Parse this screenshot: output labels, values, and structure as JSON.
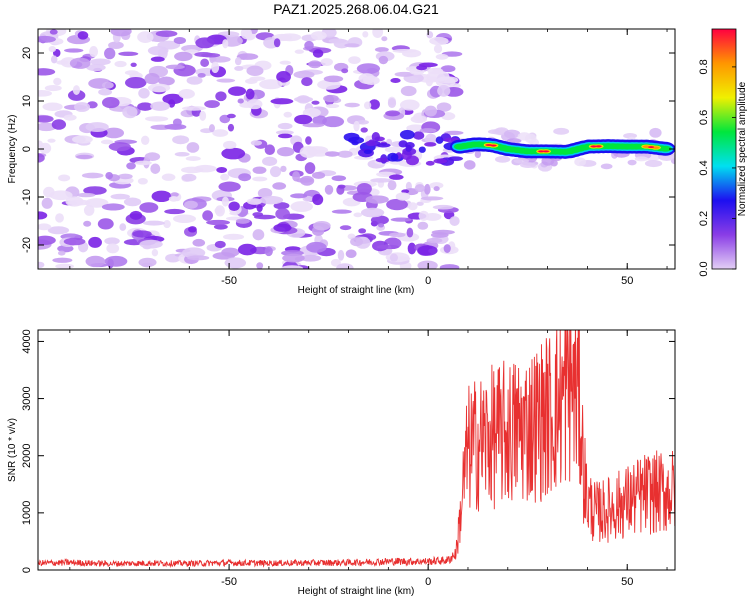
{
  "title": "PAZ1.2025.268.06.04.G21",
  "chart_data": [
    {
      "type": "heatmap",
      "xlabel": "Height of straight line (km)",
      "ylabel": "Frequency (Hz)",
      "xlim": [
        -98,
        62
      ],
      "ylim": [
        -25,
        25
      ],
      "xticks": [
        -50,
        0,
        50
      ],
      "yticks": [
        -20,
        -10,
        0,
        10,
        20
      ],
      "colorbar": {
        "label": "Normalized spectral amplitude",
        "range": [
          0,
          0.95
        ],
        "ticks": [
          "0.0",
          "0.2",
          "0.4",
          "0.6",
          "0.8"
        ],
        "colors": [
          "#e3cff5",
          "#8a3de6",
          "#1d0ff0",
          "#00e0f0",
          "#00e63c",
          "#f0f000",
          "#ff9600",
          "#ff0040"
        ]
      },
      "signal_track": {
        "description": "strong narrow band near 0 Hz",
        "x": [
          8,
          12,
          16,
          20,
          25,
          30,
          35,
          40,
          45,
          50,
          55,
          60
        ],
        "y": [
          0.5,
          1.0,
          0.8,
          0.0,
          -0.5,
          -0.5,
          -0.6,
          0.5,
          0.6,
          0.5,
          0.5,
          0.0
        ]
      },
      "noise_region": {
        "x_range": [
          -98,
          7
        ],
        "y_range": [
          -25,
          25
        ]
      }
    },
    {
      "type": "line",
      "xlabel": "Height of straight line (km)",
      "ylabel": "SNR (10 * v/v)",
      "xlim": [
        -98,
        62
      ],
      "ylim": [
        0,
        4200
      ],
      "xticks": [
        -50,
        0,
        50
      ],
      "yticks": [
        0,
        1000,
        2000,
        3000,
        4000
      ],
      "line_color": "#e83030",
      "series": [
        {
          "name": "SNR",
          "x": [
            -98,
            -90,
            -80,
            -70,
            -60,
            -50,
            -40,
            -30,
            -20,
            -10,
            0,
            5,
            7,
            8,
            9,
            10,
            12,
            15,
            20,
            25,
            30,
            33,
            36,
            38,
            39,
            40,
            42,
            45,
            50,
            55,
            60,
            62
          ],
          "y": [
            120,
            130,
            110,
            120,
            115,
            125,
            120,
            125,
            130,
            150,
            150,
            170,
            300,
            900,
            1600,
            2100,
            2200,
            2300,
            2400,
            2500,
            2700,
            2900,
            3300,
            3000,
            1800,
            1200,
            1000,
            1050,
            1200,
            1350,
            1350,
            1400
          ]
        }
      ]
    }
  ]
}
